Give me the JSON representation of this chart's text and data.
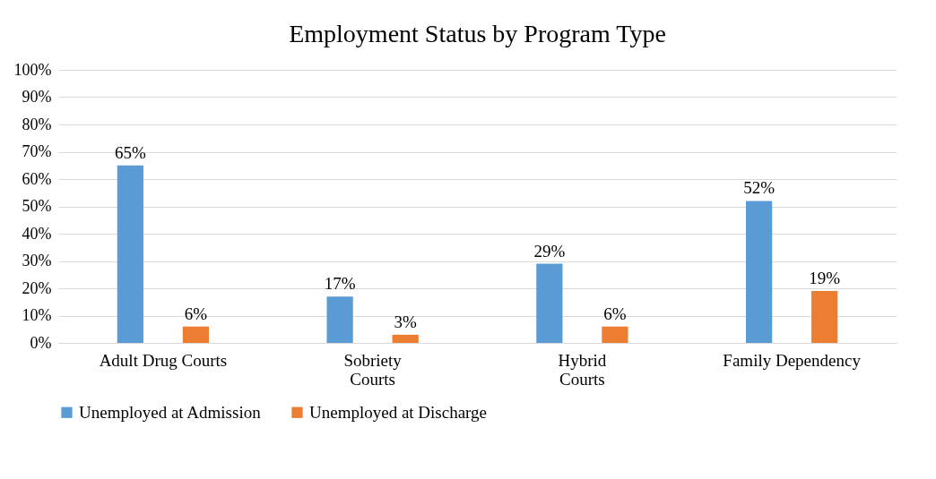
{
  "chart_data": {
    "type": "bar",
    "title": "Employment Status by Program Type",
    "categories": [
      "Adult Drug Courts",
      "Sobriety\nCourts",
      "Hybrid\nCourts",
      "Family Dependency"
    ],
    "series": [
      {
        "name": "Unemployed at Admission",
        "color": "#5b9bd5",
        "values": [
          65,
          17,
          29,
          52
        ],
        "value_labels": [
          "65%",
          "17%",
          "29%",
          "52%"
        ]
      },
      {
        "name": "Unemployed at Discharge",
        "color": "#ed7d31",
        "values": [
          6,
          3,
          6,
          19
        ],
        "value_labels": [
          "6%",
          "3%",
          "6%",
          "19%"
        ]
      }
    ],
    "ylim": [
      0,
      100
    ],
    "yticks": [
      {
        "value": 0,
        "label": "0%"
      },
      {
        "value": 10,
        "label": "10%"
      },
      {
        "value": 20,
        "label": "20%"
      },
      {
        "value": 30,
        "label": "30%"
      },
      {
        "value": 40,
        "label": "40%"
      },
      {
        "value": 50,
        "label": "50%"
      },
      {
        "value": 60,
        "label": "60%"
      },
      {
        "value": 70,
        "label": "70%"
      },
      {
        "value": 80,
        "label": "80%"
      },
      {
        "value": 90,
        "label": "90%"
      },
      {
        "value": 100,
        "label": "100%"
      }
    ],
    "grid": "y",
    "legend": "bottom"
  }
}
